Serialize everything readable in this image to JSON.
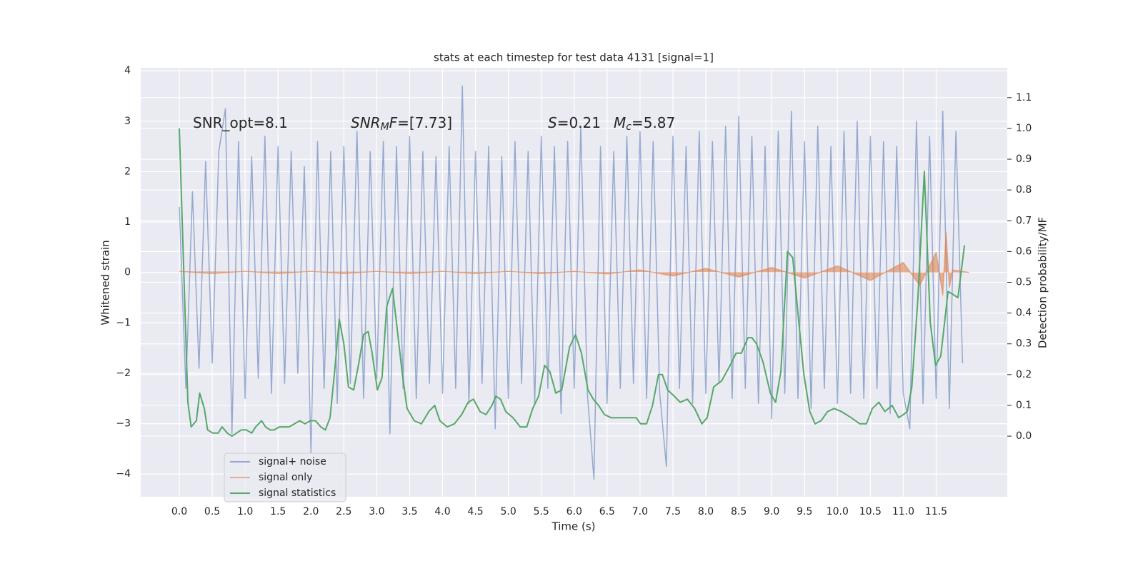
{
  "chart_data": {
    "type": "line",
    "title": "stats at each timestep for test data 4131 [signal=1]",
    "xlabel": "Time (s)",
    "ylabel": "Whitened strain",
    "y2label": "Detection probability/MF",
    "xlim": [
      -0.586,
      12.58
    ],
    "ylim": [
      -4.45,
      4.06
    ],
    "y2lim": [
      -0.197,
      1.197
    ],
    "xticks": [
      {
        "value": 0,
        "label": "0.0"
      },
      {
        "value": 0.5,
        "label": "0.5"
      },
      {
        "value": 1,
        "label": "1.0"
      },
      {
        "value": 1.5,
        "label": "1.5"
      },
      {
        "value": 2,
        "label": "2.0"
      },
      {
        "value": 2.5,
        "label": "2.5"
      },
      {
        "value": 3,
        "label": "3.0"
      },
      {
        "value": 3.5,
        "label": "3.5"
      },
      {
        "value": 4,
        "label": "4.0"
      },
      {
        "value": 4.5,
        "label": "4.5"
      },
      {
        "value": 5,
        "label": "5.0"
      },
      {
        "value": 5.5,
        "label": "5.5"
      },
      {
        "value": 6,
        "label": "6.0"
      },
      {
        "value": 6.5,
        "label": "6.5"
      },
      {
        "value": 7,
        "label": "7.0"
      },
      {
        "value": 7.5,
        "label": "7.5"
      },
      {
        "value": 8,
        "label": "8.0"
      },
      {
        "value": 8.5,
        "label": "8.5"
      },
      {
        "value": 9,
        "label": "9.0"
      },
      {
        "value": 9.5,
        "label": "9.5"
      },
      {
        "value": 10,
        "label": "10.0"
      },
      {
        "value": 10.5,
        "label": "10.5"
      },
      {
        "value": 11,
        "label": "11.0"
      },
      {
        "value": 11.5,
        "label": "11.5"
      }
    ],
    "yticks": [
      {
        "value": -4,
        "label": "−4"
      },
      {
        "value": -3,
        "label": "−3"
      },
      {
        "value": -2,
        "label": "−2"
      },
      {
        "value": -1,
        "label": "−1"
      },
      0,
      1,
      2,
      3,
      4
    ],
    "y2ticks": [
      {
        "value": 0,
        "label": "0.0"
      },
      {
        "value": 0.1,
        "label": "0.1"
      },
      {
        "value": 0.2,
        "label": "0.2"
      },
      {
        "value": 0.3,
        "label": "0.3"
      },
      {
        "value": 0.4,
        "label": "0.4"
      },
      {
        "value": 0.5,
        "label": "0.5"
      },
      {
        "value": 0.6,
        "label": "0.6"
      },
      {
        "value": 0.7,
        "label": "0.7"
      },
      {
        "value": 0.8,
        "label": "0.8"
      },
      {
        "value": 0.9,
        "label": "0.9"
      },
      {
        "value": 1,
        "label": "1.0"
      },
      {
        "value": 1.1,
        "label": "1.1"
      }
    ],
    "grid": true,
    "legend": "lower left",
    "annotations": [
      {
        "parts": [
          {
            "text": "SNR_opt=8.1"
          }
        ]
      },
      {
        "parts": [
          {
            "text": "SNR",
            "italic": true
          },
          {
            "text": "M",
            "italic": true,
            "sub": true
          },
          {
            "text": "F",
            "italic": true
          },
          {
            "text": "=[7.73]"
          }
        ]
      },
      {
        "parts": [
          {
            "text": "S",
            "italic": true
          },
          {
            "text": "=0.21"
          }
        ]
      },
      {
        "parts": [
          {
            "text": "M",
            "italic": true
          },
          {
            "text": "c",
            "italic": true,
            "sub": true
          },
          {
            "text": "=5.87"
          }
        ]
      }
    ],
    "series": [
      {
        "name": "signal+ noise",
        "color": "#4c72b0",
        "alpha": 0.55,
        "axis": "y",
        "x": [
          0,
          0.1,
          0.2,
          0.3,
          0.4,
          0.5,
          0.6,
          0.7,
          0.8,
          0.9,
          1,
          1.1,
          1.2,
          1.3,
          1.4,
          1.5,
          1.6,
          1.7,
          1.8,
          1.9,
          2,
          2.1,
          2.2,
          2.3,
          2.4,
          2.5,
          2.6,
          2.7,
          2.8,
          2.9,
          3,
          3.1,
          3.2,
          3.3,
          3.4,
          3.5,
          3.6,
          3.7,
          3.8,
          3.9,
          4,
          4.1,
          4.2,
          4.3,
          4.4,
          4.5,
          4.6,
          4.7,
          4.8,
          4.9,
          5,
          5.1,
          5.2,
          5.3,
          5.4,
          5.5,
          5.6,
          5.7,
          5.8,
          5.9,
          6,
          6.1,
          6.2,
          6.3,
          6.4,
          6.5,
          6.6,
          6.7,
          6.8,
          6.9,
          7,
          7.1,
          7.2,
          7.3,
          7.4,
          7.5,
          7.6,
          7.7,
          7.8,
          7.9,
          8,
          8.1,
          8.2,
          8.3,
          8.4,
          8.5,
          8.6,
          8.7,
          8.8,
          8.9,
          9,
          9.1,
          9.2,
          9.3,
          9.4,
          9.5,
          9.6,
          9.7,
          9.8,
          9.9,
          10,
          10.1,
          10.2,
          10.3,
          10.4,
          10.5,
          10.6,
          10.7,
          10.8,
          10.9,
          11,
          11.1,
          11.2,
          11.3,
          11.4,
          11.5,
          11.6,
          11.7,
          11.8,
          11.9
        ],
        "values": [
          1.3,
          -2.3,
          1.6,
          -1.9,
          2.2,
          -1.8,
          2.4,
          3.25,
          -3.2,
          2.6,
          -2.5,
          2.3,
          -2.1,
          2.7,
          -2.4,
          2.5,
          -2.2,
          2.4,
          -2.0,
          2.1,
          -3.6,
          2.6,
          -2.3,
          2.4,
          -2.6,
          2.5,
          -2.2,
          2.8,
          -2.5,
          2.4,
          -2.1,
          2.6,
          -3.2,
          2.5,
          -2.3,
          2.7,
          -2.5,
          2.4,
          -2.2,
          2.3,
          -2.4,
          2.5,
          -2.3,
          3.7,
          -2.6,
          2.4,
          -2.2,
          2.5,
          -3.1,
          2.3,
          -2.5,
          2.6,
          -2.2,
          2.4,
          -2.6,
          2.7,
          -2.3,
          2.5,
          -2.8,
          2.6,
          -2.3,
          2.9,
          -2.4,
          -4.1,
          2.5,
          -2.6,
          2.4,
          -2.3,
          2.7,
          -2.2,
          2.8,
          -2.5,
          2.6,
          -2.4,
          -3.85,
          2.7,
          -2.3,
          2.5,
          -2.6,
          2.8,
          -2.4,
          2.6,
          -2.2,
          2.9,
          -2.5,
          3.1,
          -2.3,
          2.7,
          -2.6,
          2.5,
          -2.9,
          2.8,
          -2.4,
          3.2,
          -2.5,
          2.6,
          -2.7,
          2.9,
          -2.3,
          2.5,
          -2.6,
          2.8,
          -2.4,
          3.0,
          -2.5,
          2.7,
          -2.3,
          2.6,
          -2.8,
          2.5,
          -2.4,
          -3.1,
          3.0,
          -2.6,
          2.7,
          -2.5,
          3.2,
          -2.7,
          2.8,
          -1.8
        ]
      },
      {
        "name": "signal only",
        "color": "#dd8452",
        "alpha": 0.6,
        "axis": "y",
        "fill": true,
        "x": [
          0,
          0.5,
          1,
          1.5,
          2,
          2.5,
          3,
          3.5,
          4,
          4.5,
          5,
          5.5,
          6,
          6.5,
          7,
          7.5,
          8,
          8.5,
          9,
          9.5,
          10,
          10.5,
          11,
          11.25,
          11.5,
          11.6,
          11.65,
          11.7,
          11.75,
          12.0
        ],
        "values": [
          0.02,
          -0.02,
          0.02,
          -0.02,
          0.02,
          -0.02,
          0.02,
          -0.02,
          0.02,
          -0.02,
          0.02,
          -0.02,
          0.02,
          -0.03,
          0.05,
          -0.07,
          0.08,
          -0.09,
          0.1,
          -0.11,
          0.13,
          -0.16,
          0.2,
          -0.26,
          0.4,
          -0.45,
          0.8,
          -0.3,
          0.05,
          0.0
        ]
      },
      {
        "name": "signal statistics",
        "color": "#55a868",
        "alpha": 1,
        "axis": "y2",
        "x": [
          0,
          0.13,
          0.18,
          0.26,
          0.31,
          0.38,
          0.43,
          0.51,
          0.59,
          0.65,
          0.73,
          0.8,
          0.87,
          0.94,
          1.02,
          1.1,
          1.16,
          1.25,
          1.31,
          1.38,
          1.44,
          1.52,
          1.6,
          1.67,
          1.75,
          1.83,
          1.91,
          1.99,
          2.07,
          2.15,
          2.22,
          2.29,
          2.36,
          2.43,
          2.5,
          2.57,
          2.65,
          2.73,
          2.8,
          2.87,
          2.93,
          3.01,
          3.08,
          3.15,
          3.24,
          3.31,
          3.39,
          3.46,
          3.57,
          3.68,
          3.79,
          3.88,
          3.96,
          4.07,
          4.18,
          4.29,
          4.39,
          4.47,
          4.57,
          4.66,
          4.75,
          4.81,
          4.88,
          4.96,
          5.07,
          5.18,
          5.28,
          5.37,
          5.46,
          5.55,
          5.63,
          5.72,
          5.81,
          5.93,
          6.02,
          6.11,
          6.21,
          6.29,
          6.37,
          6.46,
          6.56,
          6.71,
          6.83,
          6.94,
          7.01,
          7.1,
          7.19,
          7.28,
          7.34,
          7.42,
          7.52,
          7.61,
          7.72,
          7.83,
          7.94,
          8.02,
          8.12,
          8.24,
          8.37,
          8.46,
          8.54,
          8.64,
          8.7,
          8.77,
          8.87,
          8.98,
          9.06,
          9.14,
          9.24,
          9.32,
          9.4,
          9.49,
          9.58,
          9.66,
          9.75,
          9.85,
          9.95,
          10.06,
          10.21,
          10.34,
          10.44,
          10.53,
          10.63,
          10.72,
          10.83,
          10.93,
          11.0,
          11.06,
          11.13,
          11.22,
          11.32,
          11.41,
          11.49,
          11.57,
          11.68,
          11.76,
          11.83,
          11.93
        ],
        "values": [
          1.0,
          0.11,
          0.03,
          0.05,
          0.14,
          0.09,
          0.02,
          0.01,
          0.01,
          0.03,
          0.01,
          0.0,
          0.01,
          0.02,
          0.02,
          0.01,
          0.03,
          0.05,
          0.03,
          0.02,
          0.02,
          0.03,
          0.03,
          0.03,
          0.04,
          0.05,
          0.04,
          0.05,
          0.05,
          0.03,
          0.02,
          0.06,
          0.21,
          0.38,
          0.3,
          0.16,
          0.15,
          0.24,
          0.33,
          0.34,
          0.27,
          0.15,
          0.19,
          0.42,
          0.48,
          0.35,
          0.2,
          0.09,
          0.05,
          0.04,
          0.08,
          0.1,
          0.05,
          0.03,
          0.04,
          0.07,
          0.11,
          0.12,
          0.08,
          0.07,
          0.1,
          0.13,
          0.12,
          0.08,
          0.06,
          0.03,
          0.03,
          0.09,
          0.13,
          0.23,
          0.21,
          0.14,
          0.15,
          0.29,
          0.33,
          0.27,
          0.15,
          0.12,
          0.1,
          0.07,
          0.06,
          0.06,
          0.06,
          0.06,
          0.04,
          0.04,
          0.1,
          0.2,
          0.2,
          0.15,
          0.13,
          0.11,
          0.12,
          0.09,
          0.04,
          0.06,
          0.16,
          0.18,
          0.23,
          0.27,
          0.27,
          0.32,
          0.32,
          0.3,
          0.24,
          0.14,
          0.11,
          0.21,
          0.6,
          0.58,
          0.4,
          0.2,
          0.08,
          0.04,
          0.05,
          0.08,
          0.09,
          0.08,
          0.06,
          0.04,
          0.04,
          0.09,
          0.11,
          0.08,
          0.1,
          0.06,
          0.07,
          0.08,
          0.16,
          0.44,
          0.86,
          0.37,
          0.23,
          0.26,
          0.47,
          0.46,
          0.45,
          0.62
        ]
      }
    ]
  }
}
